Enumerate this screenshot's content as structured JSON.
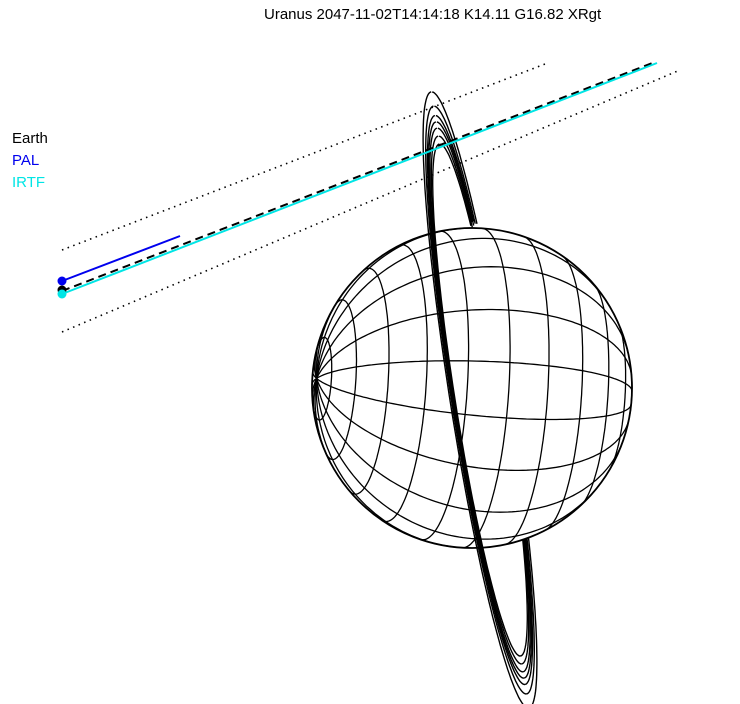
{
  "title": "Uranus 2047-11-02T14:14:18  K14.11  G16.82 XRgt",
  "legend": [
    {
      "label": "Earth",
      "color": "#000000"
    },
    {
      "label": "PAL",
      "color": "#0000ee"
    },
    {
      "label": "IRTF",
      "color": "#00e5e5"
    }
  ],
  "colors": {
    "planet": "#000000",
    "rings": "#000000"
  }
}
